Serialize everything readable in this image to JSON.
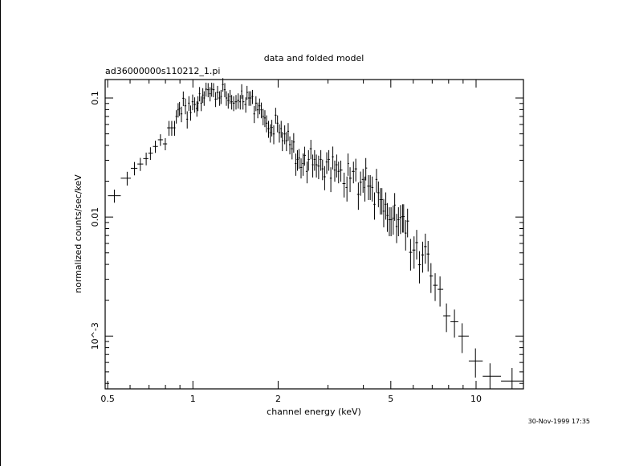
{
  "chart_data": {
    "type": "scatter",
    "title": "data and folded model",
    "subtitle": "ad36000000s110212_1.pi",
    "xlabel": "channel energy (keV)",
    "ylabel": "normalized counts/sec/keV",
    "x_scale": "log",
    "y_scale": "log",
    "xlim": [
      0.49,
      14.7
    ],
    "ylim": [
      0.00036,
      0.143
    ],
    "x_ticks": [
      {
        "value": 0.5,
        "label": "0.5"
      },
      {
        "value": 1,
        "label": "1"
      },
      {
        "value": 2,
        "label": "2"
      },
      {
        "value": 5,
        "label": "5"
      },
      {
        "value": 10,
        "label": "10"
      }
    ],
    "y_ticks": [
      {
        "value": 0.1,
        "label": "0.1"
      },
      {
        "value": 0.01,
        "label": "0.01"
      },
      {
        "value": 0.001,
        "label": "10^-3",
        "base": "10",
        "exp": "−3"
      }
    ],
    "grid": false,
    "marker": "error-cross",
    "color": "#000000",
    "timestamp": "30-Nov-1999 17:35",
    "points_format": [
      "energy_keV",
      "counts",
      "counts_err"
    ],
    "points": [
      [
        0.528,
        0.0151,
        0.0019
      ],
      [
        0.586,
        0.0212,
        0.0028
      ],
      [
        0.622,
        0.0257,
        0.0033
      ],
      [
        0.652,
        0.0279,
        0.0035
      ],
      [
        0.684,
        0.031,
        0.0038
      ],
      [
        0.708,
        0.0344,
        0.0042
      ],
      [
        0.737,
        0.0392,
        0.0046
      ],
      [
        0.768,
        0.0446,
        0.005
      ],
      [
        0.799,
        0.0412,
        0.0048
      ],
      [
        0.823,
        0.0562,
        0.008
      ],
      [
        0.842,
        0.0562,
        0.008
      ],
      [
        0.862,
        0.0562,
        0.008
      ],
      [
        0.874,
        0.07,
        0.009
      ],
      [
        0.887,
        0.0796,
        0.011
      ],
      [
        0.897,
        0.0817,
        0.011
      ],
      [
        0.911,
        0.0736,
        0.011
      ],
      [
        0.925,
        0.0995,
        0.014
      ],
      [
        0.941,
        0.086,
        0.013
      ],
      [
        0.955,
        0.0664,
        0.011
      ],
      [
        0.968,
        0.0906,
        0.013
      ],
      [
        0.982,
        0.0755,
        0.011
      ],
      [
        0.998,
        0.093,
        0.014
      ],
      [
        1.015,
        0.0883,
        0.013
      ],
      [
        1.033,
        0.0817,
        0.012
      ],
      [
        1.042,
        0.0906,
        0.013
      ],
      [
        1.056,
        0.1087,
        0.015
      ],
      [
        1.07,
        0.0906,
        0.013
      ],
      [
        1.084,
        0.106,
        0.015
      ],
      [
        1.096,
        0.1,
        0.014
      ],
      [
        1.113,
        0.1186,
        0.016
      ],
      [
        1.132,
        0.1175,
        0.016
      ],
      [
        1.15,
        0.1087,
        0.015
      ],
      [
        1.165,
        0.1186,
        0.016
      ],
      [
        1.183,
        0.1175,
        0.016
      ],
      [
        1.203,
        0.098,
        0.014
      ],
      [
        1.222,
        0.1115,
        0.015
      ],
      [
        1.243,
        0.1,
        0.014
      ],
      [
        1.257,
        0.103,
        0.014
      ],
      [
        1.276,
        0.13,
        0.017
      ],
      [
        1.296,
        0.1175,
        0.016
      ],
      [
        1.313,
        0.1,
        0.014
      ],
      [
        1.333,
        0.0954,
        0.014
      ],
      [
        1.353,
        0.103,
        0.014
      ],
      [
        1.371,
        0.093,
        0.013
      ],
      [
        1.393,
        0.0906,
        0.013
      ],
      [
        1.42,
        0.093,
        0.013
      ],
      [
        1.445,
        0.0954,
        0.014
      ],
      [
        1.47,
        0.093,
        0.013
      ],
      [
        1.487,
        0.1146,
        0.016
      ],
      [
        1.503,
        0.093,
        0.013
      ],
      [
        1.537,
        0.0883,
        0.013
      ],
      [
        1.553,
        0.1115,
        0.015
      ],
      [
        1.578,
        0.1,
        0.014
      ],
      [
        1.6,
        0.1,
        0.014
      ],
      [
        1.623,
        0.103,
        0.014
      ],
      [
        1.647,
        0.0736,
        0.012
      ],
      [
        1.67,
        0.0906,
        0.013
      ],
      [
        1.695,
        0.0796,
        0.012
      ],
      [
        1.72,
        0.086,
        0.013
      ],
      [
        1.744,
        0.0796,
        0.012
      ],
      [
        1.77,
        0.07,
        0.011
      ],
      [
        1.796,
        0.068,
        0.011
      ],
      [
        1.82,
        0.0615,
        0.01
      ],
      [
        1.85,
        0.0553,
        0.009
      ],
      [
        1.877,
        0.0512,
        0.009
      ],
      [
        1.9,
        0.0566,
        0.009
      ],
      [
        1.93,
        0.0499,
        0.009
      ],
      [
        1.96,
        0.0718,
        0.011
      ],
      [
        1.99,
        0.0615,
        0.01
      ],
      [
        2.02,
        0.0512,
        0.009
      ],
      [
        2.05,
        0.0553,
        0.009
      ],
      [
        2.07,
        0.0438,
        0.008
      ],
      [
        2.11,
        0.0499,
        0.009
      ],
      [
        2.14,
        0.0438,
        0.008
      ],
      [
        2.17,
        0.0526,
        0.009
      ],
      [
        2.2,
        0.0406,
        0.007
      ],
      [
        2.24,
        0.0375,
        0.007
      ],
      [
        2.27,
        0.0427,
        0.008
      ],
      [
        2.31,
        0.0282,
        0.006
      ],
      [
        2.34,
        0.0305,
        0.006
      ],
      [
        2.37,
        0.0313,
        0.006
      ],
      [
        2.41,
        0.0261,
        0.005
      ],
      [
        2.45,
        0.0282,
        0.006
      ],
      [
        2.48,
        0.033,
        0.006
      ],
      [
        2.53,
        0.0242,
        0.005
      ],
      [
        2.56,
        0.0305,
        0.006
      ],
      [
        2.61,
        0.0375,
        0.007
      ],
      [
        2.65,
        0.0275,
        0.006
      ],
      [
        2.69,
        0.0305,
        0.006
      ],
      [
        2.73,
        0.0275,
        0.006
      ],
      [
        2.78,
        0.0268,
        0.006
      ],
      [
        2.83,
        0.0305,
        0.006
      ],
      [
        2.87,
        0.0254,
        0.005
      ],
      [
        2.92,
        0.0218,
        0.005
      ],
      [
        2.97,
        0.029,
        0.006
      ],
      [
        3.02,
        0.0305,
        0.006
      ],
      [
        3.07,
        0.0212,
        0.005
      ],
      [
        3.12,
        0.0321,
        0.007
      ],
      [
        3.17,
        0.0248,
        0.005
      ],
      [
        3.22,
        0.0275,
        0.006
      ],
      [
        3.27,
        0.0242,
        0.005
      ],
      [
        3.33,
        0.0248,
        0.005
      ],
      [
        3.42,
        0.0191,
        0.0045
      ],
      [
        3.5,
        0.0177,
        0.0042
      ],
      [
        3.53,
        0.0282,
        0.006
      ],
      [
        3.59,
        0.0212,
        0.005
      ],
      [
        3.69,
        0.0242,
        0.005
      ],
      [
        3.76,
        0.0254,
        0.0055
      ],
      [
        3.84,
        0.0155,
        0.004
      ],
      [
        3.91,
        0.0196,
        0.0045
      ],
      [
        3.99,
        0.0207,
        0.0047
      ],
      [
        4.05,
        0.0177,
        0.0042
      ],
      [
        4.08,
        0.0258,
        0.0055
      ],
      [
        4.17,
        0.0182,
        0.0043
      ],
      [
        4.23,
        0.0182,
        0.0043
      ],
      [
        4.3,
        0.0177,
        0.0042
      ],
      [
        4.38,
        0.0128,
        0.0033
      ],
      [
        4.45,
        0.0207,
        0.0047
      ],
      [
        4.52,
        0.016,
        0.0039
      ],
      [
        4.59,
        0.014,
        0.0035
      ],
      [
        4.65,
        0.014,
        0.0035
      ],
      [
        4.72,
        0.0112,
        0.003
      ],
      [
        4.8,
        0.0128,
        0.0033
      ],
      [
        4.86,
        0.0103,
        0.0028
      ],
      [
        4.94,
        0.0095,
        0.0026
      ],
      [
        5.01,
        0.0095,
        0.0026
      ],
      [
        5.1,
        0.0098,
        0.0027
      ],
      [
        5.16,
        0.0126,
        0.0033
      ],
      [
        5.24,
        0.00834,
        0.0023
      ],
      [
        5.32,
        0.0095,
        0.0026
      ],
      [
        5.41,
        0.0099,
        0.0027
      ],
      [
        5.5,
        0.0101,
        0.0027
      ],
      [
        5.55,
        0.0101,
        0.0027
      ],
      [
        5.64,
        0.00733,
        0.0021
      ],
      [
        5.73,
        0.00925,
        0.0025
      ],
      [
        5.87,
        0.00505,
        0.0015
      ],
      [
        6.04,
        0.00528,
        0.0016
      ],
      [
        6.17,
        0.0061,
        0.0017
      ],
      [
        6.31,
        0.00397,
        0.0012
      ],
      [
        6.48,
        0.00481,
        0.0014
      ],
      [
        6.62,
        0.00565,
        0.0016
      ],
      [
        6.77,
        0.00489,
        0.0014
      ],
      [
        6.93,
        0.0032,
        0.0009
      ],
      [
        7.17,
        0.00267,
        0.0007
      ],
      [
        7.46,
        0.00247,
        0.0007
      ],
      [
        7.86,
        0.00148,
        0.0004
      ],
      [
        8.39,
        0.00132,
        0.00035
      ],
      [
        8.93,
        0.001,
        0.00028
      ],
      [
        9.95,
        0.000618,
        0.00017
      ],
      [
        11.2,
        0.00046,
        0.00013
      ],
      [
        13.4,
        0.000419,
        0.00012
      ]
    ]
  }
}
